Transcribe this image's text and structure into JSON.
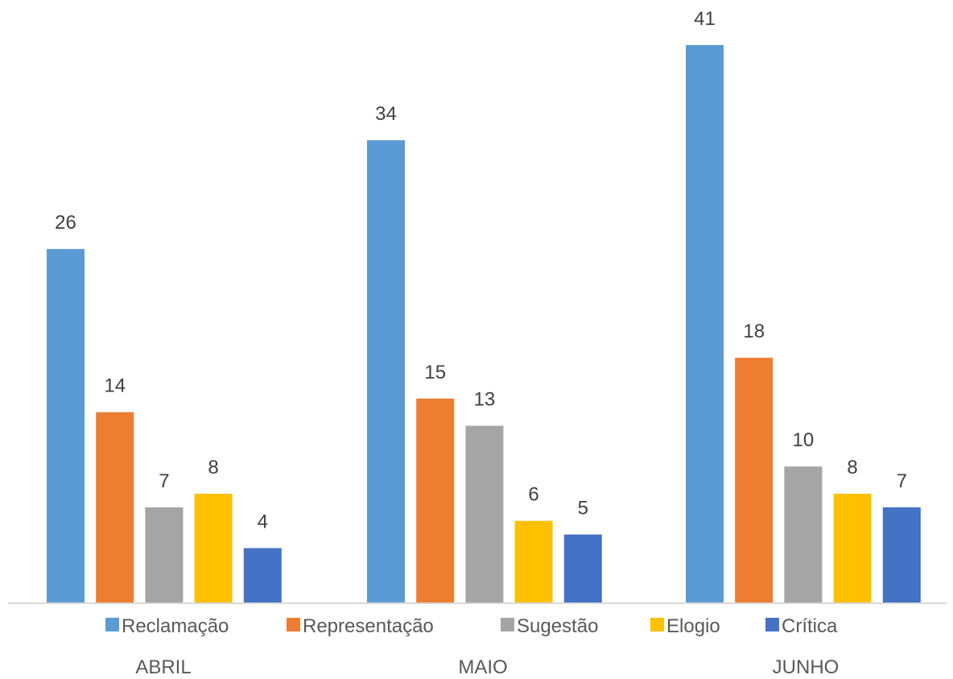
{
  "chart_data": {
    "type": "bar",
    "categories": [
      "ABRIL",
      "MAIO",
      "JUNHO"
    ],
    "series": [
      {
        "name": "Reclamação",
        "color": "#5B9BD5",
        "values": [
          26,
          34,
          41
        ]
      },
      {
        "name": "Representação",
        "color": "#ED7D31",
        "values": [
          14,
          15,
          18
        ]
      },
      {
        "name": "Sugestão",
        "color": "#A5A5A5",
        "values": [
          7,
          13,
          10
        ]
      },
      {
        "name": "Elogio",
        "color": "#FFC000",
        "values": [
          8,
          6,
          8
        ]
      },
      {
        "name": "Crítica",
        "color": "#4472C4",
        "values": [
          4,
          5,
          7
        ]
      }
    ],
    "ylim": [
      0,
      41
    ],
    "grid": false,
    "legend_position": "bottom",
    "data_labels": true
  }
}
